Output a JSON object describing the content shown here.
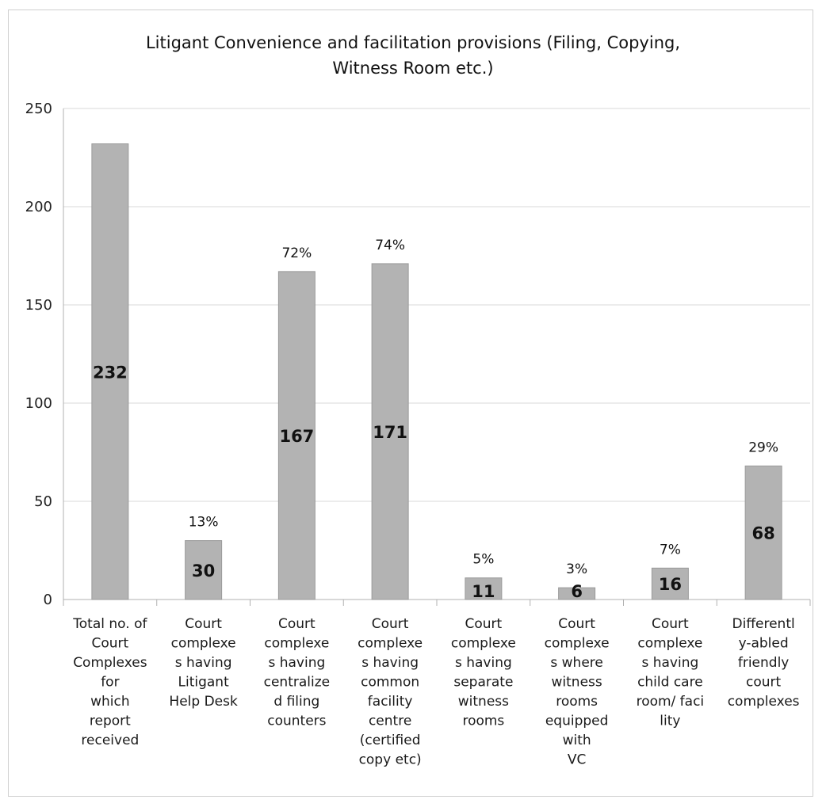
{
  "chart_data": {
    "type": "bar",
    "title": [
      "Litigant Convenience and facilitation provisions (Filing, Copying,",
      "Witness Room etc.)"
    ],
    "categories": [
      [
        "Total no. of",
        "Court",
        "Complexes",
        "for",
        "which",
        "report",
        "received"
      ],
      [
        "Court",
        "complexe",
        "s having",
        "Litigant",
        "Help Desk"
      ],
      [
        "Court",
        "complexe",
        "s having",
        "centralize",
        "d filing",
        "counters"
      ],
      [
        "Court",
        "complexe",
        "s having",
        "common",
        "facility",
        "centre",
        "(certified",
        "copy etc)"
      ],
      [
        "Court",
        "complexe",
        "s having",
        "separate",
        "witness",
        "rooms"
      ],
      [
        "Court",
        "complexe",
        "s where",
        "witness",
        "rooms",
        "equipped",
        "with",
        "VC"
      ],
      [
        "Court",
        "complexe",
        "s having",
        "child care",
        "room/ faci",
        "lity"
      ],
      [
        "Differentl",
        "y-abled",
        "friendly",
        "court",
        "complexes"
      ]
    ],
    "values": [
      232,
      30,
      167,
      171,
      11,
      6,
      16,
      68
    ],
    "percent_labels": [
      "",
      "13%",
      "72%",
      "74%",
      "5%",
      "3%",
      "7%",
      "29%"
    ],
    "y_ticks": [
      "0",
      "50",
      "100",
      "150",
      "200",
      "250"
    ],
    "ylim": [
      0,
      250
    ],
    "grid": true,
    "colors": {
      "bar": "#b3b3b3",
      "bar_edge": "#9a9a9a",
      "grid": "#d9d9d9",
      "axis": "#b0b0b0"
    }
  }
}
